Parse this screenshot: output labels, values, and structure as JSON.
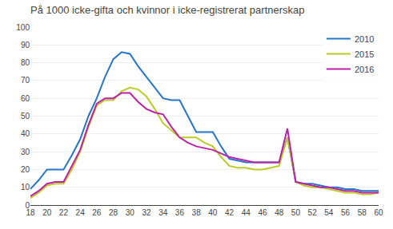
{
  "chart_data": {
    "type": "line",
    "title": "På 1000 icke-gifta och kvinnor i icke-registrerat partnerskap",
    "x": [
      18,
      19,
      20,
      21,
      22,
      23,
      24,
      25,
      26,
      27,
      28,
      29,
      30,
      31,
      32,
      33,
      34,
      35,
      36,
      37,
      38,
      39,
      40,
      41,
      42,
      43,
      44,
      45,
      46,
      47,
      48,
      49,
      50,
      51,
      52,
      53,
      54,
      55,
      56,
      57,
      58,
      59,
      60
    ],
    "series": [
      {
        "name": "2010",
        "color": "#2676C8",
        "values": [
          9,
          14,
          20,
          20,
          20,
          28,
          37,
          50,
          60,
          72,
          82,
          86,
          85,
          78,
          72,
          66,
          60,
          59,
          59,
          50,
          41,
          41,
          41,
          33,
          26,
          25,
          24,
          24,
          24,
          24,
          24,
          38,
          13,
          12,
          12,
          11,
          10,
          10,
          9,
          9,
          8,
          8,
          8
        ]
      },
      {
        "name": "2015",
        "color": "#BBCC22",
        "values": [
          4,
          7,
          11,
          12,
          12,
          20,
          30,
          44,
          56,
          59,
          59,
          64,
          66,
          65,
          61,
          54,
          46,
          42,
          38,
          38,
          38,
          35,
          33,
          27,
          22,
          21,
          21,
          20,
          20,
          21,
          22,
          38,
          13,
          11,
          10,
          10,
          9,
          8,
          7,
          7,
          6,
          6,
          7
        ]
      },
      {
        "name": "2016",
        "color": "#BB22AA",
        "values": [
          5,
          8,
          12,
          13,
          13,
          22,
          31,
          45,
          57,
          60,
          60,
          63,
          63,
          58,
          54,
          52,
          51,
          44,
          38,
          35,
          33,
          32,
          31,
          29,
          27,
          26,
          25,
          24,
          24,
          24,
          24,
          43,
          13,
          12,
          11,
          10,
          10,
          9,
          8,
          8,
          7,
          7,
          7
        ]
      }
    ],
    "xlim": [
      18,
      60
    ],
    "xticks": [
      18,
      20,
      22,
      24,
      26,
      28,
      30,
      32,
      34,
      36,
      38,
      40,
      42,
      44,
      46,
      48,
      50,
      52,
      54,
      56,
      58,
      60
    ],
    "ylim": [
      0,
      100
    ],
    "yticks": [
      0,
      10,
      20,
      30,
      40,
      50,
      60,
      70,
      80,
      90,
      100
    ],
    "grid": "y",
    "legend": "upper right"
  }
}
